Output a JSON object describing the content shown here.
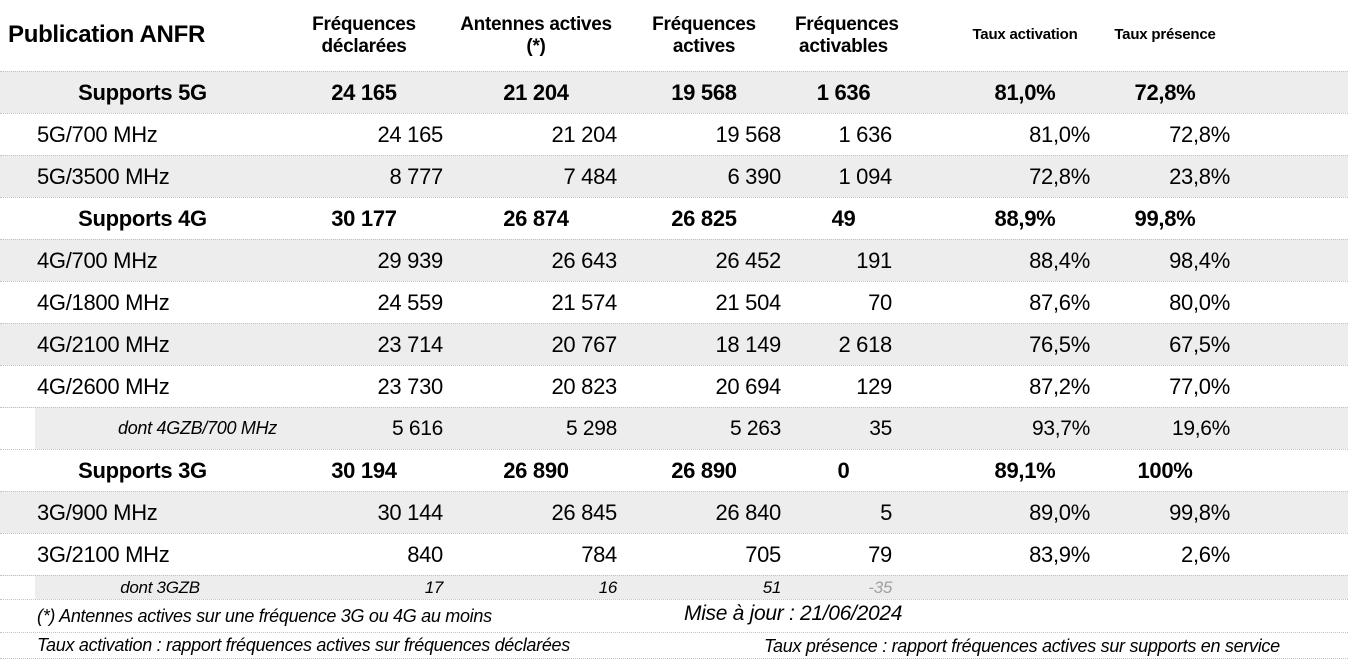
{
  "title": "Publication ANFR",
  "chart_data": {
    "type": "table",
    "columns": [
      "Publication ANFR",
      "Fréquences déclarées",
      "Antennes actives (*)",
      "Fréquences actives",
      "Fréquences activables",
      "Taux activation",
      "Taux présence"
    ],
    "rows": [
      {
        "label": "Supports 5G",
        "style": "group",
        "values": [
          "24 165",
          "21 204",
          "19 568",
          "1 636",
          "81,0%",
          "72,8%"
        ]
      },
      {
        "label": "5G/700 MHz",
        "style": "detail",
        "values": [
          "24 165",
          "21 204",
          "19 568",
          "1 636",
          "81,0%",
          "72,8%"
        ]
      },
      {
        "label": "5G/3500 MHz",
        "style": "detail",
        "values": [
          "8 777",
          "7 484",
          "6 390",
          "1 094",
          "72,8%",
          "23,8%"
        ]
      },
      {
        "label": "Supports 4G",
        "style": "group",
        "values": [
          "30 177",
          "26 874",
          "26 825",
          "49",
          "88,9%",
          "99,8%"
        ]
      },
      {
        "label": "4G/700 MHz",
        "style": "detail",
        "values": [
          "29 939",
          "26 643",
          "26 452",
          "191",
          "88,4%",
          "98,4%"
        ]
      },
      {
        "label": "4G/1800 MHz",
        "style": "detail",
        "values": [
          "24 559",
          "21 574",
          "21 504",
          "70",
          "87,6%",
          "80,0%"
        ]
      },
      {
        "label": "4G/2100 MHz",
        "style": "detail",
        "values": [
          "23 714",
          "20 767",
          "18 149",
          "2 618",
          "76,5%",
          "67,5%"
        ]
      },
      {
        "label": "4G/2600 MHz",
        "style": "detail",
        "values": [
          "23 730",
          "20 823",
          "20 694",
          "129",
          "87,2%",
          "77,0%"
        ]
      },
      {
        "label": "dont 4GZB/700 MHz",
        "style": "sub",
        "values": [
          "5 616",
          "5 298",
          "5 263",
          "35",
          "93,7%",
          "19,6%"
        ]
      },
      {
        "label": "Supports 3G",
        "style": "group",
        "values": [
          "30 194",
          "26 890",
          "26 890",
          "0",
          "89,1%",
          "100%"
        ]
      },
      {
        "label": "3G/900 MHz",
        "style": "detail",
        "values": [
          "30 144",
          "26 845",
          "26 840",
          "5",
          "89,0%",
          "99,8%"
        ]
      },
      {
        "label": "3G/2100 MHz",
        "style": "detail",
        "values": [
          "840",
          "784",
          "705",
          "79",
          "83,9%",
          "2,6%"
        ]
      },
      {
        "label": "dont 3GZB",
        "style": "sub2",
        "values": [
          "17",
          "16",
          "51",
          "-35",
          "",
          ""
        ]
      }
    ]
  },
  "footer": {
    "note_antennes": "(*) Antennes actives sur une fréquence 3G ou 4G au moins",
    "updated": "Mise à jour : 21/06/2024",
    "note_taux_activation": "Taux activation : rapport fréquences actives sur fréquences déclarées",
    "note_taux_presence": "Taux présence : rapport fréquences actives sur supports en service"
  },
  "colors": {
    "stripe": "#ededed",
    "text": "#000000",
    "muted_negative": "#a0a0a0",
    "row_divider": "#c3c3c3"
  }
}
